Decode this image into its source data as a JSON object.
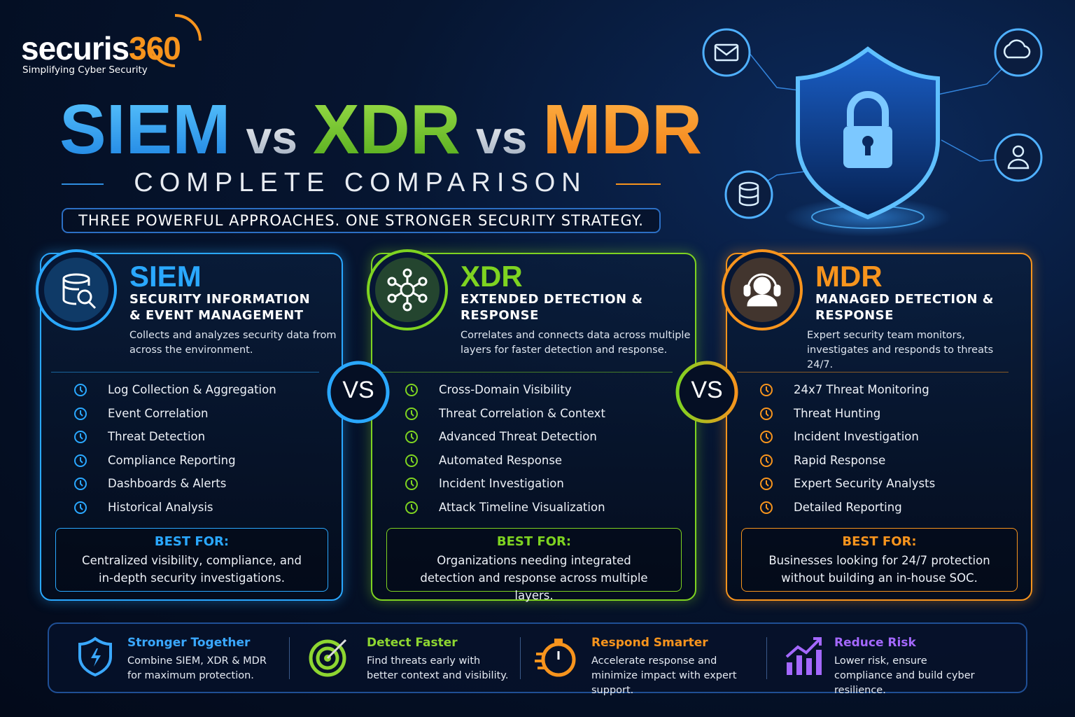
{
  "logo": {
    "brand": "securis",
    "number": "360",
    "tagline": "Simplifying Cyber Security"
  },
  "title": {
    "parts": [
      "SIEM",
      "vs",
      "XDR",
      "vs",
      "MDR"
    ],
    "subtitle": "COMPLETE COMPARISON",
    "tagline": "THREE POWERFUL APPROACHES. ONE STRONGER SECURITY STRATEGY."
  },
  "cards": [
    {
      "name": "SIEM",
      "full_name": "SECURITY INFORMATION & EVENT MANAGEMENT",
      "description": "Collects and analyzes security data from across the environment.",
      "features": [
        "Log Collection & Aggregation",
        "Event Correlation",
        "Threat Detection",
        "Compliance Reporting",
        "Dashboards & Alerts",
        "Historical Analysis"
      ],
      "best_for_label": "BEST FOR:",
      "best_for": "Centralized visibility, compliance, and in-depth security investigations."
    },
    {
      "name": "XDR",
      "full_name": "EXTENDED DETECTION & RESPONSE",
      "description": "Correlates and connects data across multiple layers for faster detection and response.",
      "features": [
        "Cross-Domain Visibility",
        "Threat Correlation & Context",
        "Advanced Threat Detection",
        "Automated Response",
        "Incident Investigation",
        "Attack Timeline Visualization"
      ],
      "best_for_label": "BEST FOR:",
      "best_for": "Organizations needing integrated detection and response across multiple layers."
    },
    {
      "name": "MDR",
      "full_name": "MANAGED DETECTION & RESPONSE",
      "description": "Expert security team monitors, investigates and responds to threats 24/7.",
      "features": [
        "24x7 Threat Monitoring",
        "Threat Hunting",
        "Incident Investigation",
        "Rapid Response",
        "Expert Security Analysts",
        "Detailed Reporting"
      ],
      "best_for_label": "BEST FOR:",
      "best_for": "Businesses looking for 24/7 protection without building an in-house SOC."
    }
  ],
  "vs_badges": [
    "VS",
    "VS"
  ],
  "benefits": [
    {
      "title": "Stronger Together",
      "text": "Combine SIEM, XDR & MDR for maximum protection."
    },
    {
      "title": "Detect Faster",
      "text": "Find threats early with better context and visibility."
    },
    {
      "title": "Respond Smarter",
      "text": "Accelerate response and minimize impact with expert support."
    },
    {
      "title": "Reduce Risk",
      "text": "Lower risk, ensure compliance and build cyber resilience."
    }
  ]
}
